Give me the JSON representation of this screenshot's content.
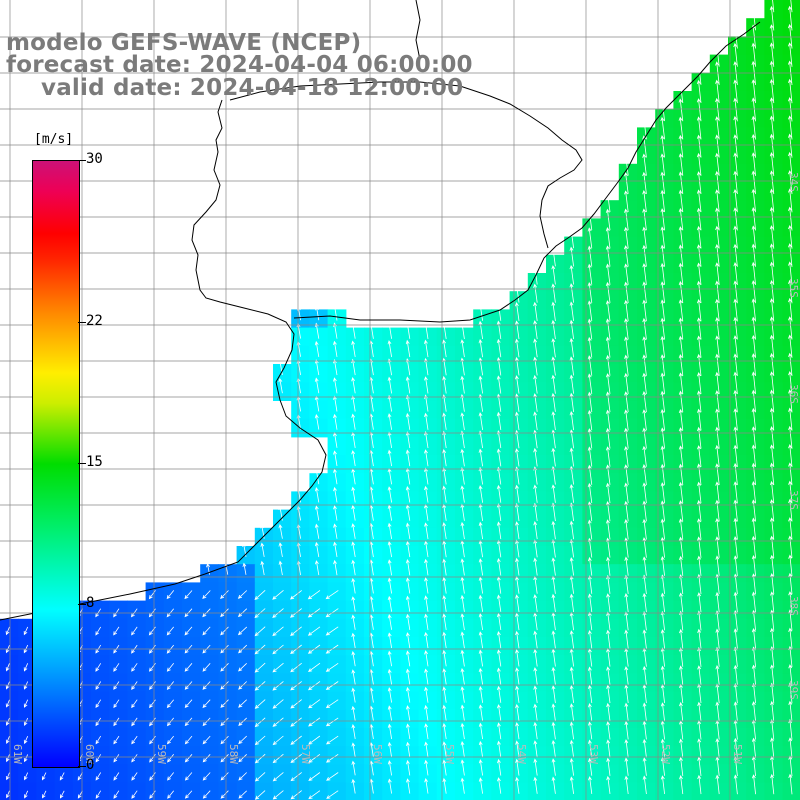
{
  "title": {
    "line1": "modelo GEFS-WAVE (NCEP)",
    "line2": "forecast date: 2024-04-04 06:00:00",
    "line3": "valid date: 2024-04-18 12:00:00"
  },
  "colorbar": {
    "unit": "[m/s]",
    "ticks": [
      "30",
      "22",
      "15",
      "8",
      "0"
    ],
    "tick_values": [
      30,
      22,
      15,
      8,
      0
    ],
    "min": 0,
    "max": 30
  },
  "bottom_labels": [
    "61W",
    "60W",
    "59W",
    "58W",
    "57W",
    "56W",
    "55W",
    "54W",
    "53W",
    "52W",
    "51W"
  ],
  "right_labels": [
    "34S",
    "35S",
    "36S",
    "37S",
    "38S",
    "39S"
  ],
  "colors": {
    "land": "#ffffff",
    "coastline": "#000000",
    "grid": "#888888",
    "arrow": "#ffffff",
    "title": "#7b7b7b"
  }
}
